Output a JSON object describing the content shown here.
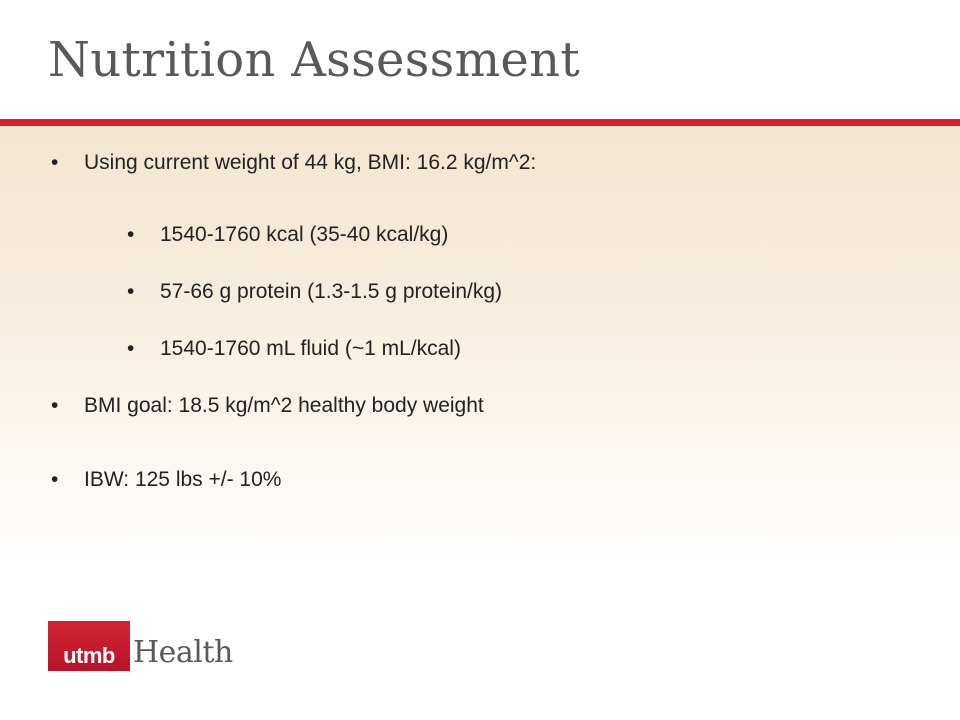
{
  "slide": {
    "title": "Nutrition Assessment",
    "bullets": [
      {
        "level": 1,
        "text": "Using current weight of 44 kg, BMI: 16.2 kg/m^2:"
      },
      {
        "level": 2,
        "text": "1540-1760 kcal (35-40 kcal/kg)"
      },
      {
        "level": 2,
        "text": "57-66 g protein (1.3-1.5 g protein/kg)"
      },
      {
        "level": 2,
        "text": "1540-1760 mL fluid (~1 mL/kcal)"
      },
      {
        "level": 1,
        "text": "BMI goal: 18.5 kg/m^2 healthy body weight"
      },
      {
        "level": 1,
        "text": "IBW: 125 lbs +/- 10%"
      }
    ],
    "bullet_symbol": "•",
    "accent_color": "#d0232f"
  },
  "logo": {
    "box_text": "utmb",
    "word": "Health",
    "color": "#c8102e"
  }
}
